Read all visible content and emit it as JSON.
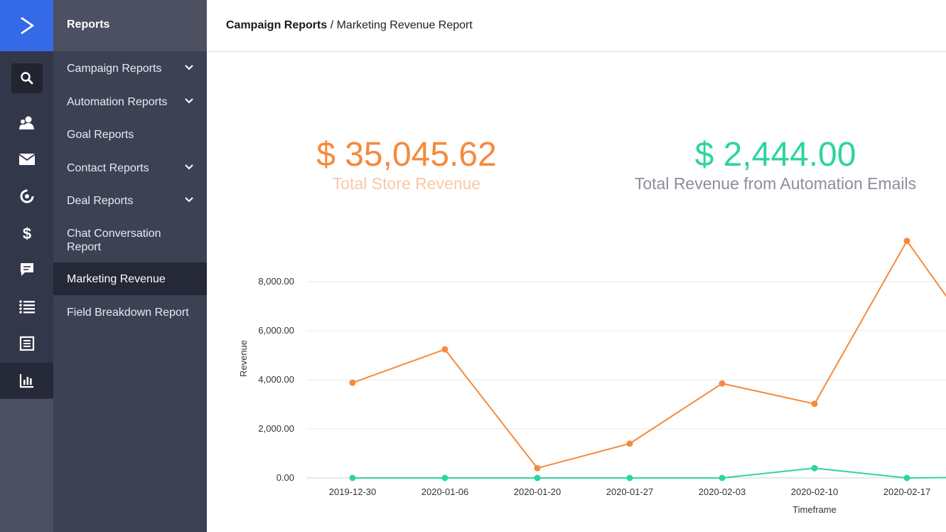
{
  "app": {
    "section_title": "Reports"
  },
  "rail": {
    "icons": [
      "logo-icon",
      "search-icon",
      "contacts-icon",
      "mail-icon",
      "automation-icon",
      "deals-icon",
      "conversations-icon",
      "lists-icon",
      "forms-icon",
      "reports-icon"
    ]
  },
  "sidebar": {
    "items": [
      {
        "label": "Campaign Reports",
        "has_chevron": true
      },
      {
        "label": "Automation Reports",
        "has_chevron": true
      },
      {
        "label": "Goal Reports",
        "has_chevron": false
      },
      {
        "label": "Contact Reports",
        "has_chevron": true
      },
      {
        "label": "Deal Reports",
        "has_chevron": true
      },
      {
        "label": "Chat Conversation Report",
        "has_chevron": false
      },
      {
        "label": "Marketing Revenue",
        "has_chevron": false,
        "active": true
      },
      {
        "label": "Field Breakdown Report",
        "has_chevron": false
      }
    ]
  },
  "breadcrumb": {
    "parent": "Campaign Reports",
    "separator": " / ",
    "current": "Marketing Revenue Report"
  },
  "stats": {
    "store": {
      "value": "$ 35,045.62",
      "label": "Total Store Revenue",
      "color": "#f58a3c",
      "label_color": "#f9c9a6"
    },
    "automation": {
      "value": "$ 2,444.00",
      "label": "Total Revenue from Automation Emails",
      "color": "#2dd4a0",
      "label_color": "#8a8f99"
    }
  },
  "chart_data": {
    "type": "line",
    "x": [
      "2019-12-30",
      "2020-01-06",
      "2020-01-20",
      "2020-01-27",
      "2020-02-03",
      "2020-02-10",
      "2020-02-17"
    ],
    "series": [
      {
        "values": [
          3880,
          5240,
          400,
          1400,
          3850,
          3020,
          9660
        ],
        "color": "#f58a3c"
      },
      {
        "values": [
          0,
          0,
          0,
          0,
          0,
          400,
          0
        ],
        "color": "#2dd4a0"
      }
    ],
    "yticks": [
      "0.00",
      "2,000.00",
      "4,000.00",
      "6,000.00",
      "8,000.00"
    ],
    "ylim": [
      0,
      9600
    ],
    "xlabel": "Timeframe",
    "ylabel": "Revenue",
    "grid": true
  }
}
